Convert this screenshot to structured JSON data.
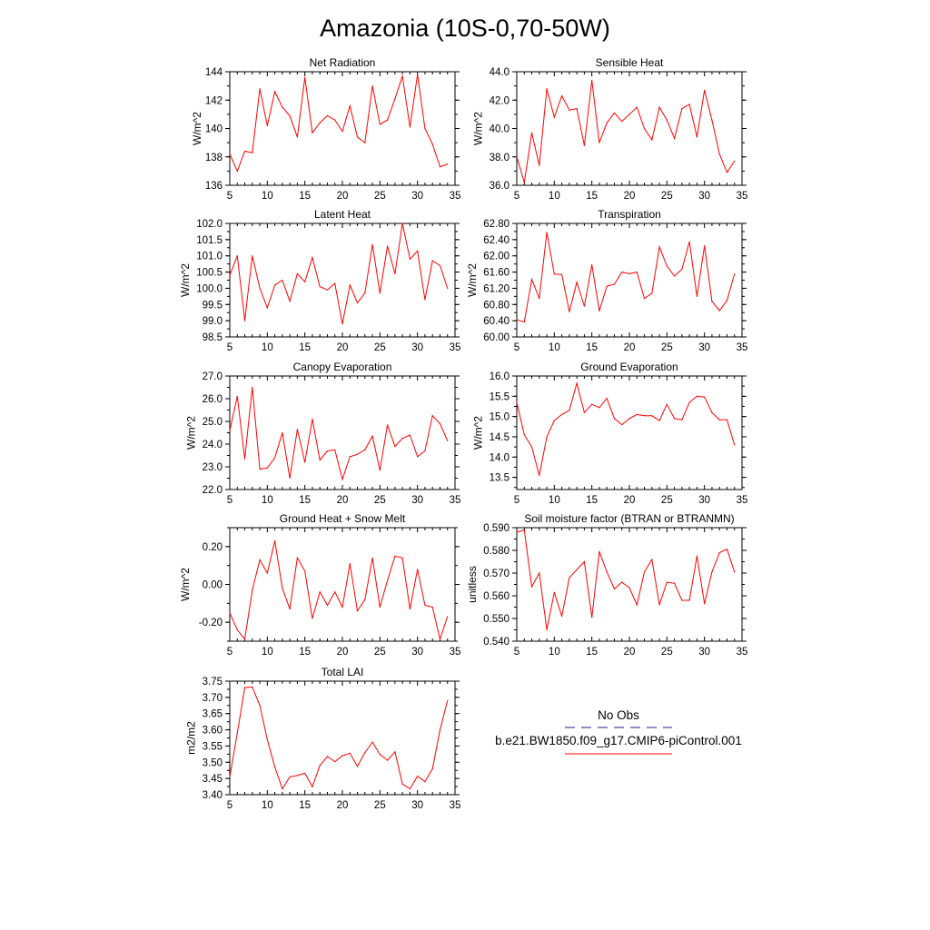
{
  "figure_title": "Amazonia (10S-0,70-50W)",
  "legend": {
    "obs_label": "No Obs",
    "model_label": "b.e21.BW1850.f09_g17.CMIP6-piControl.001",
    "obs_color": "#1a1a8c",
    "model_color": "#ff0000"
  },
  "chart_data": [
    {
      "type": "line",
      "title": "Net Radiation",
      "ylabel": "W/m^2",
      "xlim": [
        5,
        35
      ],
      "ylim": [
        136,
        144
      ],
      "xticks": [
        5,
        10,
        15,
        20,
        25,
        30,
        35
      ],
      "yticks": [
        136,
        138,
        140,
        142,
        144
      ],
      "ytick_labels": [
        "136",
        "138",
        "140",
        "142",
        "144"
      ],
      "x": [
        5,
        6,
        7,
        8,
        9,
        10,
        11,
        12,
        13,
        14,
        15,
        16,
        17,
        18,
        19,
        20,
        21,
        22,
        23,
        24,
        25,
        26,
        27,
        28,
        29,
        30,
        31,
        32,
        33,
        34
      ],
      "series": [
        {
          "name": "b.e21.BW1850.f09_g17.CMIP6-piControl.001",
          "color": "#ff0000",
          "values": [
            138.2,
            137.0,
            138.4,
            138.3,
            142.8,
            140.2,
            142.6,
            141.5,
            140.9,
            139.4,
            143.6,
            139.7,
            140.4,
            140.9,
            140.6,
            139.8,
            141.6,
            139.4,
            139.0,
            143.0,
            140.3,
            140.6,
            142.1,
            143.7,
            140.1,
            143.8,
            140.0,
            138.9,
            137.3,
            137.5
          ]
        }
      ]
    },
    {
      "type": "line",
      "title": "Sensible Heat",
      "ylabel": "W/m^2",
      "xlim": [
        5,
        35
      ],
      "ylim": [
        36.0,
        44.0
      ],
      "xticks": [
        5,
        10,
        15,
        20,
        25,
        30,
        35
      ],
      "yticks": [
        36,
        38,
        40,
        42,
        44
      ],
      "ytick_labels": [
        "36.0",
        "38.0",
        "40.0",
        "42.0",
        "44.0"
      ],
      "x": [
        5,
        6,
        7,
        8,
        9,
        10,
        11,
        12,
        13,
        14,
        15,
        16,
        17,
        18,
        19,
        20,
        21,
        22,
        23,
        24,
        25,
        26,
        27,
        28,
        29,
        30,
        31,
        32,
        33,
        34
      ],
      "series": [
        {
          "name": "b.e21.BW1850.f09_g17.CMIP6-piControl.001",
          "color": "#ff0000",
          "values": [
            38.0,
            36.2,
            39.7,
            37.4,
            42.8,
            40.8,
            42.3,
            41.3,
            41.4,
            38.8,
            43.4,
            39.0,
            40.4,
            41.1,
            40.5,
            41.0,
            41.5,
            40.0,
            39.2,
            41.5,
            40.6,
            39.3,
            41.4,
            41.7,
            39.4,
            42.7,
            40.6,
            38.2,
            36.9,
            37.7
          ]
        }
      ]
    },
    {
      "type": "line",
      "title": "Latent Heat",
      "ylabel": "W/m^2",
      "xlim": [
        5,
        35
      ],
      "ylim": [
        98.5,
        102.0
      ],
      "xticks": [
        5,
        10,
        15,
        20,
        25,
        30,
        35
      ],
      "yticks": [
        98.5,
        99.0,
        99.5,
        100.0,
        100.5,
        101.0,
        101.5,
        102.0
      ],
      "ytick_labels": [
        "98.5",
        "99.0",
        "99.5",
        "100.0",
        "100.5",
        "101.0",
        "101.5",
        "102.0"
      ],
      "x": [
        5,
        6,
        7,
        8,
        9,
        10,
        11,
        12,
        13,
        14,
        15,
        16,
        17,
        18,
        19,
        20,
        21,
        22,
        23,
        24,
        25,
        26,
        27,
        28,
        29,
        30,
        31,
        32,
        33,
        34
      ],
      "series": [
        {
          "name": "b.e21.BW1850.f09_g17.CMIP6-piControl.001",
          "color": "#ff0000",
          "values": [
            100.4,
            101.0,
            99.0,
            101.0,
            100.0,
            99.4,
            100.1,
            100.25,
            99.6,
            100.45,
            100.2,
            100.95,
            100.05,
            99.95,
            100.15,
            98.9,
            100.1,
            99.55,
            99.85,
            101.35,
            99.85,
            101.3,
            100.45,
            102.0,
            100.9,
            101.15,
            99.65,
            100.85,
            100.7,
            100.0
          ]
        }
      ]
    },
    {
      "type": "line",
      "title": "Transpiration",
      "ylabel": "W/m^2",
      "xlim": [
        5,
        35
      ],
      "ylim": [
        60.0,
        62.8
      ],
      "xticks": [
        5,
        10,
        15,
        20,
        25,
        30,
        35
      ],
      "yticks": [
        60.0,
        60.4,
        60.8,
        61.2,
        61.6,
        62.0,
        62.4,
        62.8
      ],
      "ytick_labels": [
        "60.00",
        "60.40",
        "60.80",
        "61.20",
        "61.60",
        "62.00",
        "62.40",
        "62.80"
      ],
      "x": [
        5,
        6,
        7,
        8,
        9,
        10,
        11,
        12,
        13,
        14,
        15,
        16,
        17,
        18,
        19,
        20,
        21,
        22,
        23,
        24,
        25,
        26,
        27,
        28,
        29,
        30,
        31,
        32,
        33,
        34
      ],
      "series": [
        {
          "name": "b.e21.BW1850.f09_g17.CMIP6-piControl.001",
          "color": "#ff0000",
          "values": [
            60.42,
            60.37,
            61.42,
            60.95,
            62.58,
            61.55,
            61.54,
            60.62,
            61.35,
            60.76,
            61.78,
            60.64,
            61.25,
            61.3,
            61.6,
            61.56,
            61.6,
            60.95,
            61.08,
            62.22,
            61.75,
            61.5,
            61.67,
            62.35,
            61.0,
            62.25,
            60.88,
            60.65,
            60.9,
            61.55
          ]
        }
      ]
    },
    {
      "type": "line",
      "title": "Canopy Evaporation",
      "ylabel": "W/m^2",
      "xlim": [
        5,
        35
      ],
      "ylim": [
        22.0,
        27.0
      ],
      "xticks": [
        5,
        10,
        15,
        20,
        25,
        30,
        35
      ],
      "yticks": [
        22,
        23,
        24,
        25,
        26,
        27
      ],
      "ytick_labels": [
        "22.0",
        "23.0",
        "24.0",
        "25.0",
        "26.0",
        "27.0"
      ],
      "x": [
        5,
        6,
        7,
        8,
        9,
        10,
        11,
        12,
        13,
        14,
        15,
        16,
        17,
        18,
        19,
        20,
        21,
        22,
        23,
        24,
        25,
        26,
        27,
        28,
        29,
        30,
        31,
        32,
        33,
        34
      ],
      "series": [
        {
          "name": "b.e21.BW1850.f09_g17.CMIP6-piControl.001",
          "color": "#ff0000",
          "values": [
            24.6,
            26.1,
            23.35,
            26.5,
            22.9,
            22.95,
            23.4,
            24.5,
            22.5,
            24.65,
            23.2,
            25.1,
            23.3,
            23.7,
            23.75,
            22.45,
            23.45,
            23.55,
            23.75,
            24.35,
            22.85,
            24.85,
            23.9,
            24.25,
            24.4,
            23.45,
            23.7,
            25.25,
            24.9,
            24.15
          ]
        }
      ]
    },
    {
      "type": "line",
      "title": "Ground Evaporation",
      "ylabel": "W/m^2",
      "xlim": [
        5,
        35
      ],
      "ylim": [
        13.2,
        16.0
      ],
      "xticks": [
        5,
        10,
        15,
        20,
        25,
        30,
        35
      ],
      "yticks": [
        13.5,
        14.0,
        14.5,
        15.0,
        15.5,
        16.0
      ],
      "ytick_labels": [
        "13.5",
        "14.0",
        "14.5",
        "15.0",
        "15.5",
        "16.0"
      ],
      "x": [
        5,
        6,
        7,
        8,
        9,
        10,
        11,
        12,
        13,
        14,
        15,
        16,
        17,
        18,
        19,
        20,
        21,
        22,
        23,
        24,
        25,
        26,
        27,
        28,
        29,
        30,
        31,
        32,
        33,
        34
      ],
      "series": [
        {
          "name": "b.e21.BW1850.f09_g17.CMIP6-piControl.001",
          "color": "#ff0000",
          "values": [
            15.35,
            14.55,
            14.25,
            13.55,
            14.5,
            14.9,
            15.05,
            15.15,
            15.82,
            15.1,
            15.3,
            15.22,
            15.45,
            14.95,
            14.8,
            14.95,
            15.05,
            15.02,
            15.02,
            14.9,
            15.3,
            14.95,
            14.92,
            15.35,
            15.5,
            15.48,
            15.1,
            14.92,
            14.92,
            14.3
          ]
        }
      ]
    },
    {
      "type": "line",
      "title": "Ground Heat + Snow Melt",
      "ylabel": "W/m^2",
      "xlim": [
        5,
        35
      ],
      "ylim": [
        -0.3,
        0.3
      ],
      "xticks": [
        5,
        10,
        15,
        20,
        25,
        30,
        35
      ],
      "yticks": [
        -0.2,
        0.0,
        0.2
      ],
      "ytick_labels": [
        "-0.20",
        "0.00",
        "0.20"
      ],
      "x": [
        5,
        6,
        7,
        8,
        9,
        10,
        11,
        12,
        13,
        14,
        15,
        16,
        17,
        18,
        19,
        20,
        21,
        22,
        23,
        24,
        25,
        26,
        27,
        28,
        29,
        30,
        31,
        32,
        33,
        34
      ],
      "series": [
        {
          "name": "b.e21.BW1850.f09_g17.CMIP6-piControl.001",
          "color": "#ff0000",
          "values": [
            -0.15,
            -0.24,
            -0.29,
            -0.03,
            0.13,
            0.06,
            0.23,
            -0.02,
            -0.13,
            0.14,
            0.07,
            -0.18,
            -0.04,
            -0.11,
            -0.04,
            -0.12,
            0.11,
            -0.14,
            -0.08,
            0.14,
            -0.12,
            0.02,
            0.15,
            0.14,
            -0.13,
            0.08,
            -0.11,
            -0.12,
            -0.29,
            -0.17
          ]
        }
      ]
    },
    {
      "type": "line",
      "title": "Soil moisture factor (BTRAN or BTRANMN)",
      "ylabel": "unitless",
      "xlim": [
        5,
        35
      ],
      "ylim": [
        0.54,
        0.59
      ],
      "xticks": [
        5,
        10,
        15,
        20,
        25,
        30,
        35
      ],
      "yticks": [
        0.54,
        0.55,
        0.56,
        0.57,
        0.58,
        0.59
      ],
      "ytick_labels": [
        "0.540",
        "0.550",
        "0.560",
        "0.570",
        "0.580",
        "0.590"
      ],
      "x": [
        5,
        6,
        7,
        8,
        9,
        10,
        11,
        12,
        13,
        14,
        15,
        16,
        17,
        18,
        19,
        20,
        21,
        22,
        23,
        24,
        25,
        26,
        27,
        28,
        29,
        30,
        31,
        32,
        33,
        34
      ],
      "series": [
        {
          "name": "b.e21.BW1850.f09_g17.CMIP6-piControl.001",
          "color": "#ff0000",
          "values": [
            0.588,
            0.589,
            0.564,
            0.57,
            0.545,
            0.5615,
            0.551,
            0.568,
            0.5715,
            0.575,
            0.5505,
            0.5795,
            0.5705,
            0.563,
            0.566,
            0.5635,
            0.556,
            0.5705,
            0.576,
            0.556,
            0.566,
            0.5655,
            0.558,
            0.558,
            0.5775,
            0.5565,
            0.5705,
            0.579,
            0.5805,
            0.5705
          ]
        }
      ]
    },
    {
      "type": "line",
      "title": "Total LAI",
      "ylabel": "m2/m2",
      "xlim": [
        5,
        35
      ],
      "ylim": [
        3.4,
        3.75
      ],
      "xticks": [
        5,
        10,
        15,
        20,
        25,
        30,
        35
      ],
      "yticks": [
        3.4,
        3.45,
        3.5,
        3.55,
        3.6,
        3.65,
        3.7,
        3.75
      ],
      "ytick_labels": [
        "3.40",
        "3.45",
        "3.50",
        "3.55",
        "3.60",
        "3.65",
        "3.70",
        "3.75"
      ],
      "x": [
        5,
        6,
        7,
        8,
        9,
        10,
        11,
        12,
        13,
        14,
        15,
        16,
        17,
        18,
        19,
        20,
        21,
        22,
        23,
        24,
        25,
        26,
        27,
        28,
        29,
        30,
        31,
        32,
        33,
        34
      ],
      "series": [
        {
          "name": "b.e21.BW1850.f09_g17.CMIP6-piControl.001",
          "color": "#ff0000",
          "values": [
            3.455,
            3.59,
            3.73,
            3.732,
            3.675,
            3.57,
            3.485,
            3.418,
            3.455,
            3.459,
            3.466,
            3.424,
            3.49,
            3.518,
            3.502,
            3.52,
            3.528,
            3.487,
            3.53,
            3.562,
            3.524,
            3.506,
            3.532,
            3.433,
            3.418,
            3.457,
            3.44,
            3.48,
            3.6,
            3.69
          ]
        }
      ]
    }
  ]
}
